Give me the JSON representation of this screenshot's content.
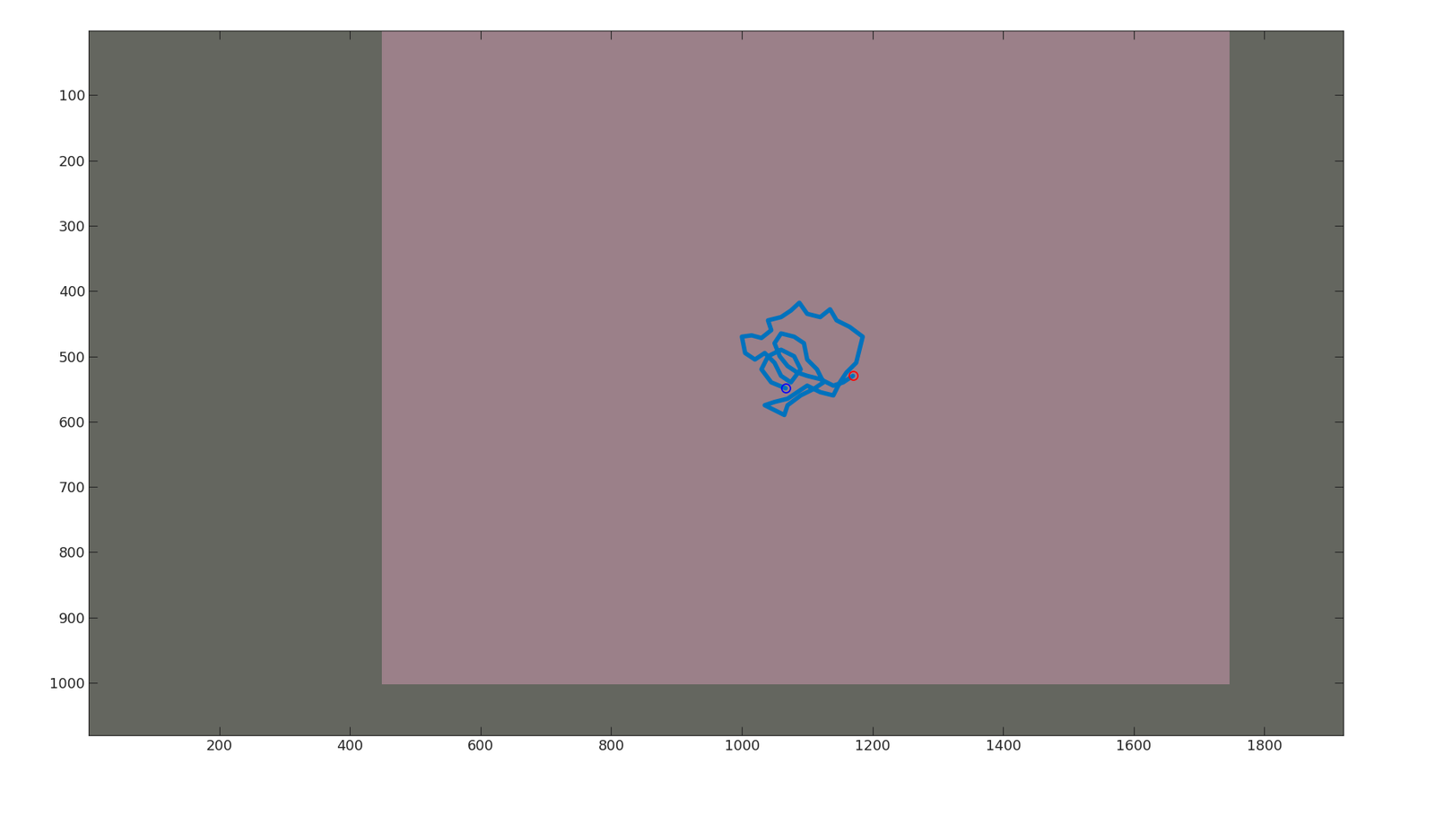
{
  "chart_data": {
    "type": "line",
    "xlim": [
      0.5,
      1920.5
    ],
    "ylim": [
      1080.5,
      0.5
    ],
    "xticks": [
      200,
      400,
      600,
      800,
      1000,
      1200,
      1400,
      1600,
      1800
    ],
    "yticks": [
      100,
      200,
      300,
      400,
      500,
      600,
      700,
      800,
      900,
      1000
    ],
    "grid": false,
    "series": [
      {
        "type": "line",
        "color": "#0072bd",
        "line_style": "solid",
        "x": [
          1067,
          1045,
          1030,
          1040,
          1060,
          1080,
          1090,
          1075,
          1060,
          1050,
          1035,
          1020,
          1005,
          1000,
          1015,
          1030,
          1045,
          1040,
          1060,
          1075,
          1088,
          1100,
          1120,
          1135,
          1145,
          1165,
          1185,
          1180,
          1175,
          1160,
          1150,
          1140,
          1120,
          1100,
          1085,
          1070,
          1050,
          1035,
          1045,
          1065,
          1070,
          1090,
          1110,
          1125,
          1115,
          1100,
          1095,
          1080,
          1060,
          1050,
          1058,
          1070,
          1085,
          1100,
          1120,
          1140,
          1155,
          1170
        ],
        "values": [
          549,
          540,
          520,
          500,
          490,
          500,
          520,
          540,
          530,
          510,
          495,
          505,
          495,
          470,
          468,
          472,
          460,
          445,
          440,
          430,
          418,
          435,
          440,
          428,
          445,
          455,
          470,
          490,
          510,
          525,
          540,
          560,
          555,
          545,
          555,
          565,
          570,
          575,
          580,
          590,
          575,
          560,
          550,
          540,
          520,
          505,
          480,
          470,
          465,
          480,
          500,
          515,
          525,
          530,
          535,
          545,
          540,
          530
        ]
      },
      {
        "type": "scatter",
        "color": "#0000ff",
        "marker": "o",
        "x": [
          1067
        ],
        "values": [
          549
        ]
      },
      {
        "type": "scatter",
        "color": "#ff0000",
        "marker": "o",
        "x": [
          1170
        ],
        "values": [
          530
        ]
      }
    ]
  }
}
